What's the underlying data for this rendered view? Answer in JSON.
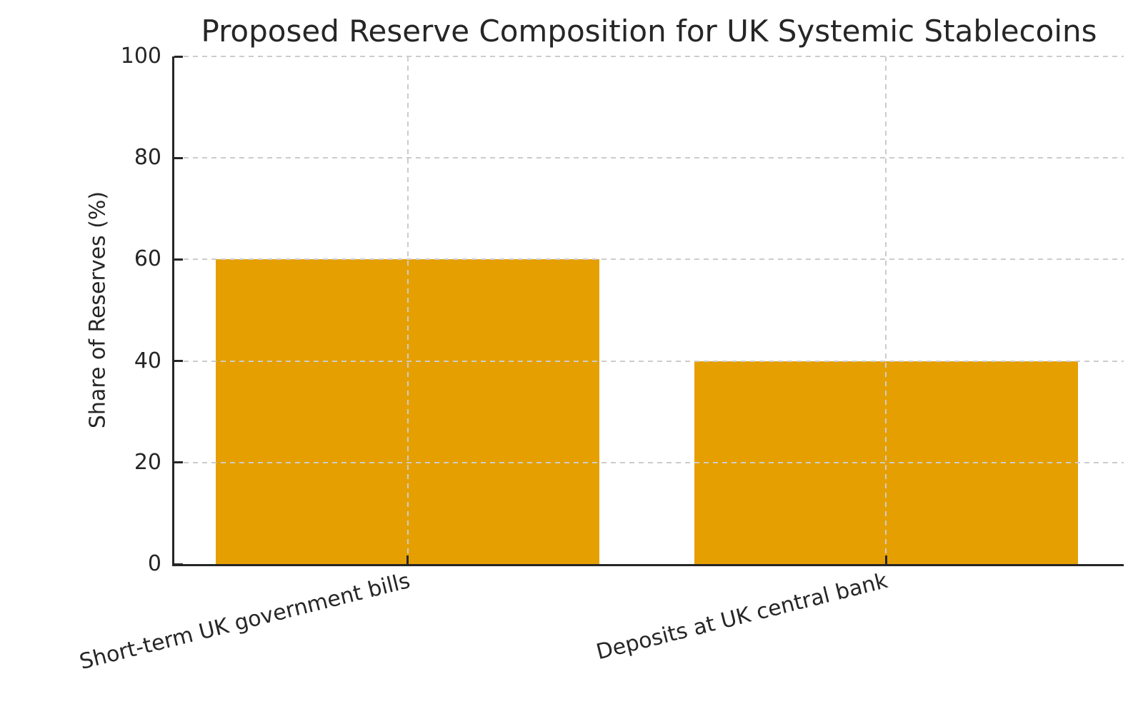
{
  "chart_data": {
    "type": "bar",
    "title": "Proposed Reserve Composition for UK Systemic Stablecoins",
    "categories": [
      "Short-term UK government bills",
      "Deposits at UK central bank"
    ],
    "values": [
      60,
      40
    ],
    "xlabel": "",
    "ylabel": "Share of Reserves (%)",
    "ylim": [
      0,
      100
    ],
    "yticks": [
      0,
      20,
      40,
      60,
      80,
      100
    ],
    "bar_color": "#E69F00",
    "axis_color": "#262626",
    "text_color": "#262626",
    "grid": "on",
    "grid_style": "dashed",
    "grid_color": "#cccccc",
    "legend": "none",
    "x_tick_rotation_deg": 14
  }
}
